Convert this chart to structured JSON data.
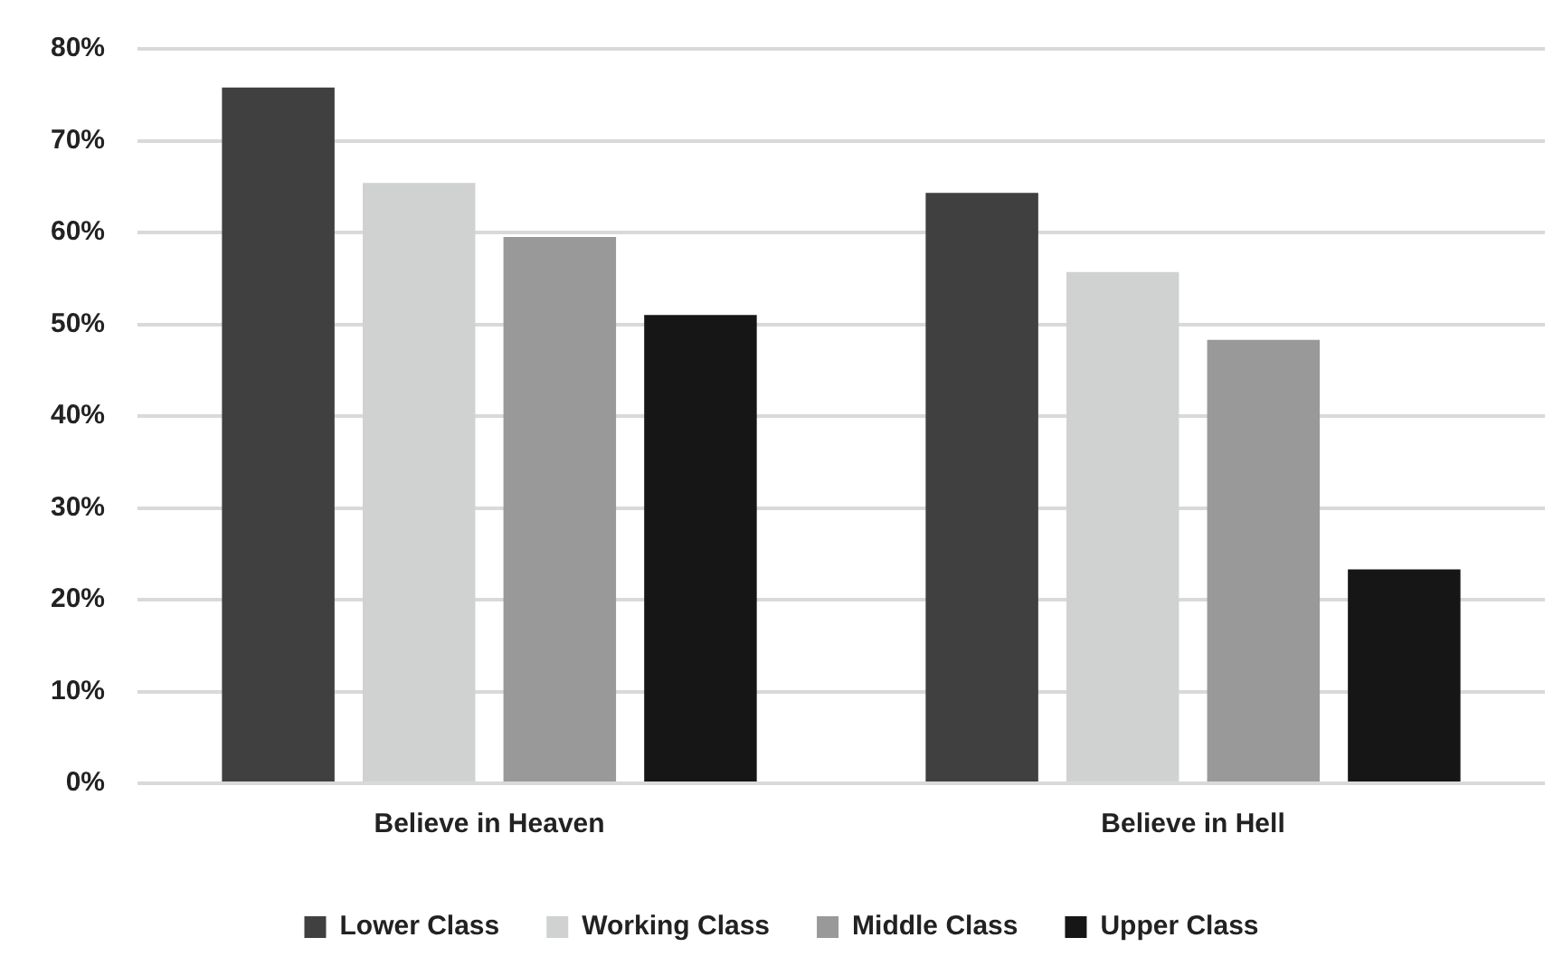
{
  "chart_data": {
    "type": "bar",
    "categories": [
      "Believe in Heaven",
      "Believe in Hell"
    ],
    "series": [
      {
        "name": "Lower Class",
        "color": "#404040",
        "values": [
          75.8,
          64.3
        ]
      },
      {
        "name": "Working Class",
        "color": "#d0d2d1",
        "values": [
          65.4,
          55.7
        ]
      },
      {
        "name": "Middle Class",
        "color": "#999999",
        "values": [
          59.5,
          48.3
        ]
      },
      {
        "name": "Upper Class",
        "color": "#161616",
        "values": [
          51.0,
          23.3
        ]
      }
    ],
    "ylim": [
      0,
      80
    ],
    "yticks": [
      {
        "value": 0,
        "label": "0%"
      },
      {
        "value": 10,
        "label": "10%"
      },
      {
        "value": 20,
        "label": "20%"
      },
      {
        "value": 30,
        "label": "30%"
      },
      {
        "value": 40,
        "label": "40%"
      },
      {
        "value": 50,
        "label": "50%"
      },
      {
        "value": 60,
        "label": "60%"
      },
      {
        "value": 70,
        "label": "70%"
      },
      {
        "value": 80,
        "label": "80%"
      }
    ],
    "grid": "y",
    "legend": "bottom"
  }
}
